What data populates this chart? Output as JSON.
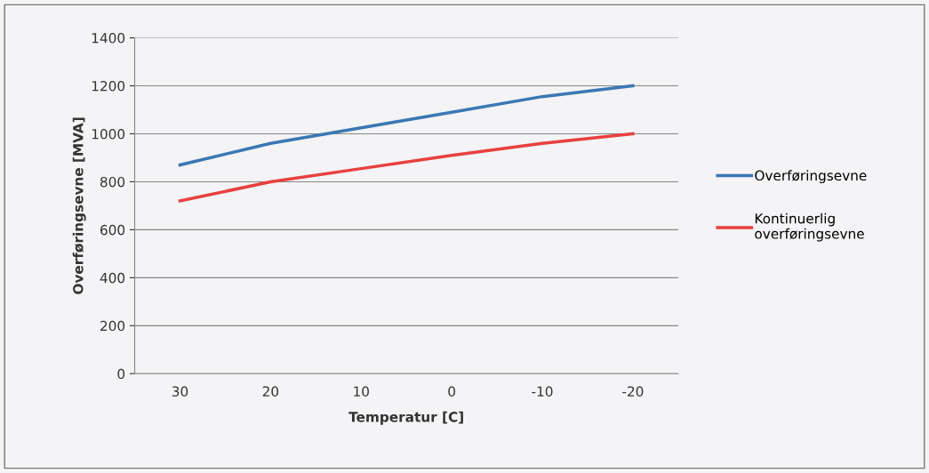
{
  "chart_data": {
    "type": "line",
    "xlabel": "Temperatur [C]",
    "ylabel": "Overføringsevne [MVA]",
    "categories": [
      "30",
      "20",
      "10",
      "0",
      "-10",
      "-20"
    ],
    "series": [
      {
        "name": "Overføringsevne",
        "color": "#3a78b5",
        "values": [
          870,
          960,
          1025,
          1090,
          1155,
          1200
        ]
      },
      {
        "name": "Kontinuerlig\noverføringsevne",
        "color": "#e8403f",
        "values": [
          720,
          800,
          855,
          910,
          960,
          1000
        ]
      }
    ],
    "ylim": [
      0,
      1400
    ],
    "yticks": [
      0,
      200,
      400,
      600,
      800,
      1000,
      1200,
      1400
    ],
    "grid": "y",
    "legend": "right",
    "marker": "none",
    "line_style": "solid"
  }
}
